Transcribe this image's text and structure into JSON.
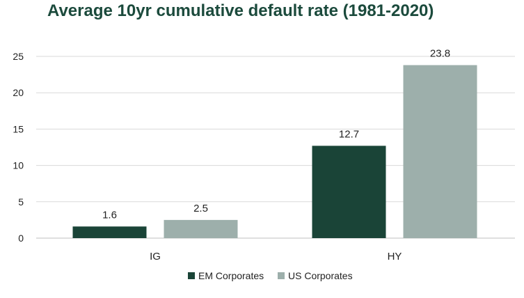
{
  "chart_data": {
    "type": "bar",
    "title": "Average 10yr cumulative default rate (1981-2020)",
    "xlabel": "",
    "ylabel": "",
    "ylim": [
      0,
      25
    ],
    "yticks": [
      0,
      5,
      10,
      15,
      20,
      25
    ],
    "grid": true,
    "legend_position": "bottom-center",
    "categories": [
      "IG",
      "HY"
    ],
    "series": [
      {
        "name": "EM Corporates",
        "color": "#1a4437",
        "values": [
          1.6,
          12.7
        ],
        "labels": [
          "1.6",
          "12.7"
        ]
      },
      {
        "name": "US Corporates",
        "color": "#9dafab",
        "values": [
          2.5,
          23.8
        ],
        "labels": [
          "2.5",
          "23.8"
        ]
      }
    ]
  }
}
